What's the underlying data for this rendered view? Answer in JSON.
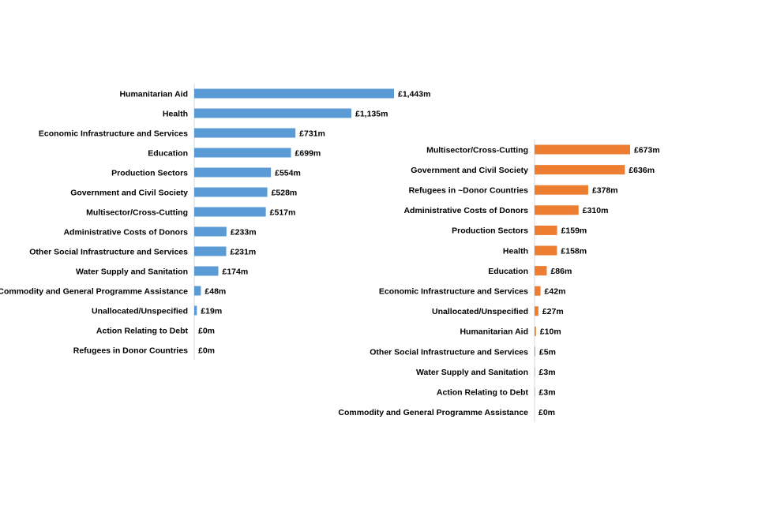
{
  "chart_data": [
    {
      "type": "bar",
      "orientation": "horizontal",
      "color": "#5b9bd5",
      "title": "",
      "xlabel": "",
      "ylabel": "",
      "categories": [
        "Humanitarian Aid",
        "Health",
        "Economic Infrastructure and Services",
        "Education",
        "Production Sectors",
        "Government and Civil Society",
        "Multisector/Cross-Cutting",
        "Administrative Costs of Donors",
        "Other Social Infrastructure and Services",
        "Water Supply and Sanitation",
        "Commodity and General Programme Assistance",
        "Unallocated/Unspecified",
        "Action Relating to Debt",
        "Refugees in Donor Countries"
      ],
      "values": [
        1443,
        1135,
        731,
        699,
        554,
        528,
        517,
        233,
        231,
        174,
        48,
        19,
        0,
        0
      ],
      "value_labels": [
        "£1,443m",
        "£1,135m",
        "£731m",
        "£699m",
        "£554m",
        "£528m",
        "£517m",
        "£233m",
        "£231m",
        "£174m",
        "£48m",
        "£19m",
        "£0m",
        "£0m"
      ],
      "unit": "£m"
    },
    {
      "type": "bar",
      "orientation": "horizontal",
      "color": "#ed7d31",
      "title": "",
      "xlabel": "",
      "ylabel": "",
      "categories": [
        "Multisector/Cross-Cutting",
        "Government and Civil Society",
        "Refugees in ~Donor Countries",
        "Administrative Costs of Donors",
        "Production Sectors",
        "Health",
        "Education",
        "Economic Infrastructure and Services",
        "Unallocated/Unspecified",
        "Humanitarian Aid",
        "Other Social Infrastructure and Services",
        "Water Supply and Sanitation",
        "Action Relating to Debt",
        "Commodity and General Programme Assistance"
      ],
      "values": [
        673,
        636,
        378,
        310,
        159,
        158,
        86,
        42,
        27,
        10,
        5,
        3,
        3,
        0
      ],
      "value_labels": [
        "£673m",
        "£636m",
        "£378m",
        "£310m",
        "£159m",
        "£158m",
        "£86m",
        "£42m",
        "£27m",
        "£10m",
        "£5m",
        "£3m",
        "£3m",
        "£0m"
      ],
      "unit": "£m"
    }
  ]
}
